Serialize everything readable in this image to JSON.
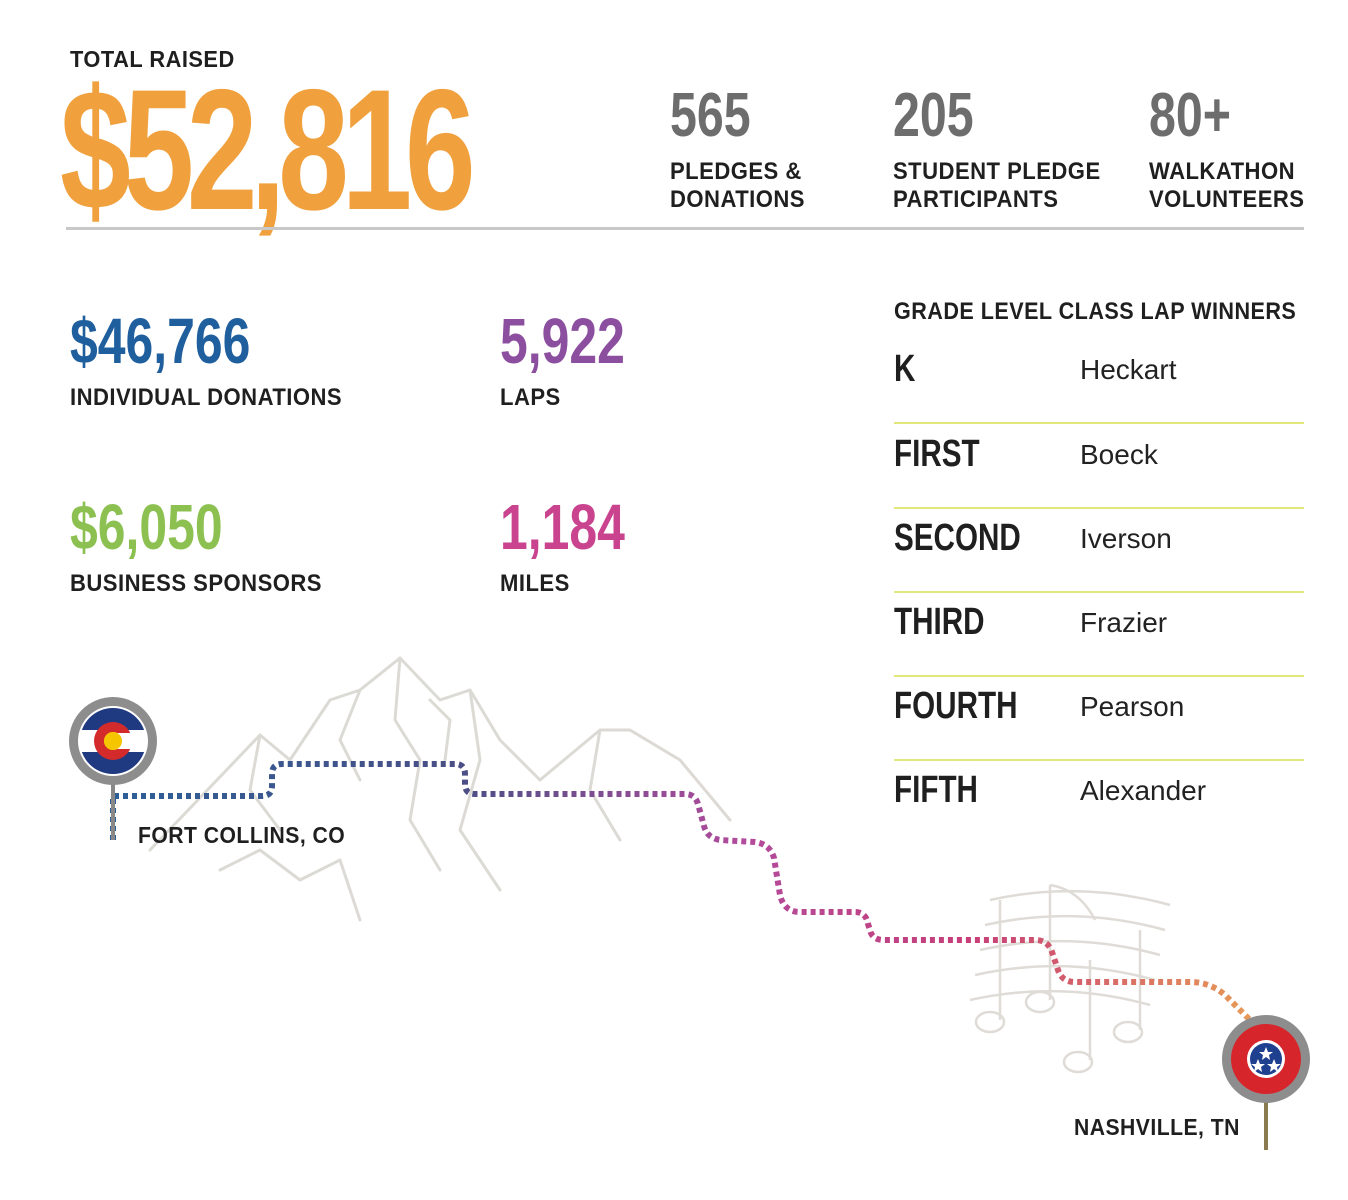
{
  "total": {
    "label": "TOTAL RAISED",
    "value": "$52,816",
    "color": "#f0a13e"
  },
  "header_stats": [
    {
      "value": "565",
      "label_line1": "PLEDGES &",
      "label_line2": "DONATIONS"
    },
    {
      "value": "205",
      "label_line1": "STUDENT PLEDGE",
      "label_line2": "PARTICIPANTS"
    },
    {
      "value": "80+",
      "label_line1": "WALKATHON",
      "label_line2": "VOLUNTEERS"
    }
  ],
  "metrics": {
    "individual": {
      "value": "$46,766",
      "label": "INDIVIDUAL DONATIONS",
      "color": "#1f5f9e"
    },
    "laps": {
      "value": "5,922",
      "label": "LAPS",
      "color": "#8c4f9f"
    },
    "business": {
      "value": "$6,050",
      "label": "BUSINESS SPONSORS",
      "color": "#8cc152"
    },
    "miles": {
      "value": "1,184",
      "label": "MILES",
      "color": "#c9438e"
    }
  },
  "winners": {
    "title": "GRADE LEVEL CLASS LAP WINNERS",
    "rows": [
      {
        "grade": "K",
        "name": "Heckart"
      },
      {
        "grade": "FIRST",
        "name": "Boeck"
      },
      {
        "grade": "SECOND",
        "name": "Iverson"
      },
      {
        "grade": "THIRD",
        "name": "Frazier"
      },
      {
        "grade": "FOURTH",
        "name": "Pearson"
      },
      {
        "grade": "FIFTH",
        "name": "Alexander"
      }
    ]
  },
  "route": {
    "start": "FORT COLLINS, CO",
    "end": "NASHVILLE, TN",
    "start_icon": "colorado-flag-icon",
    "end_icon": "tennessee-flag-icon"
  }
}
